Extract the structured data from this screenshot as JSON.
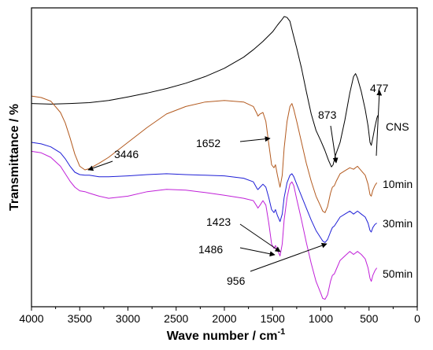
{
  "chart_data": {
    "type": "line",
    "title": "",
    "xlabel": "Wave number / cm",
    "xlabel_sup": "-1",
    "ylabel": "Transmittance / %",
    "xlim": [
      4000,
      0
    ],
    "ylim": [
      0,
      100
    ],
    "xticks": [
      "4000",
      "3500",
      "3000",
      "2500",
      "2000",
      "1500",
      "1000",
      "500",
      "0"
    ],
    "grid": false,
    "legend": "none",
    "series": [
      {
        "name": "CNS",
        "color": "#000000",
        "points": [
          [
            4000,
            68.0
          ],
          [
            3800,
            67.8
          ],
          [
            3600,
            68.0
          ],
          [
            3400,
            68.3
          ],
          [
            3200,
            69.0
          ],
          [
            3000,
            70.2
          ],
          [
            2800,
            71.5
          ],
          [
            2600,
            73.0
          ],
          [
            2400,
            74.8
          ],
          [
            2200,
            77.0
          ],
          [
            2000,
            79.8
          ],
          [
            1800,
            83.5
          ],
          [
            1700,
            86.0
          ],
          [
            1600,
            88.8
          ],
          [
            1500,
            92.0
          ],
          [
            1450,
            94.2
          ],
          [
            1400,
            96.2
          ],
          [
            1380,
            97.1
          ],
          [
            1350,
            96.8
          ],
          [
            1320,
            95.5
          ],
          [
            1290,
            91.5
          ],
          [
            1250,
            86.5
          ],
          [
            1200,
            79.8
          ],
          [
            1150,
            72.0
          ],
          [
            1100,
            64.5
          ],
          [
            1050,
            59.0
          ],
          [
            1000,
            55.5
          ],
          [
            960,
            52.5
          ],
          [
            920,
            49.0
          ],
          [
            890,
            46.8
          ],
          [
            873,
            47.5
          ],
          [
            850,
            50.5
          ],
          [
            800,
            55.0
          ],
          [
            750,
            62.5
          ],
          [
            700,
            71.5
          ],
          [
            660,
            77.0
          ],
          [
            640,
            78.0
          ],
          [
            620,
            76.5
          ],
          [
            580,
            72.0
          ],
          [
            540,
            66.0
          ],
          [
            510,
            60.5
          ],
          [
            490,
            55.0
          ],
          [
            477,
            54.0
          ],
          [
            460,
            56.5
          ],
          [
            440,
            60.0
          ],
          [
            420,
            63.0
          ],
          [
            410,
            64.0
          ]
        ]
      },
      {
        "name": "10min",
        "color": "#b35a1f",
        "points": [
          [
            4000,
            70.5
          ],
          [
            3900,
            70.0
          ],
          [
            3800,
            68.8
          ],
          [
            3700,
            65.0
          ],
          [
            3650,
            61.5
          ],
          [
            3600,
            56.5
          ],
          [
            3550,
            51.0
          ],
          [
            3500,
            47.0
          ],
          [
            3446,
            45.8
          ],
          [
            3400,
            46.2
          ],
          [
            3300,
            48.0
          ],
          [
            3200,
            50.0
          ],
          [
            3000,
            55.0
          ],
          [
            2800,
            60.0
          ],
          [
            2600,
            64.5
          ],
          [
            2400,
            67.0
          ],
          [
            2200,
            68.5
          ],
          [
            2000,
            69.0
          ],
          [
            1800,
            68.5
          ],
          [
            1700,
            67.0
          ],
          [
            1660,
            64.5
          ],
          [
            1652,
            63.8
          ],
          [
            1630,
            64.5
          ],
          [
            1600,
            65.0
          ],
          [
            1570,
            62.0
          ],
          [
            1540,
            54.5
          ],
          [
            1510,
            47.5
          ],
          [
            1486,
            46.5
          ],
          [
            1470,
            47.5
          ],
          [
            1450,
            44.0
          ],
          [
            1423,
            40.0
          ],
          [
            1400,
            44.0
          ],
          [
            1380,
            53.0
          ],
          [
            1350,
            62.0
          ],
          [
            1320,
            67.0
          ],
          [
            1300,
            68.0
          ],
          [
            1280,
            66.0
          ],
          [
            1250,
            62.0
          ],
          [
            1200,
            55.0
          ],
          [
            1150,
            48.0
          ],
          [
            1100,
            42.0
          ],
          [
            1050,
            37.0
          ],
          [
            1000,
            33.5
          ],
          [
            980,
            32.0
          ],
          [
            956,
            31.5
          ],
          [
            930,
            33.5
          ],
          [
            900,
            38.0
          ],
          [
            880,
            40.0
          ],
          [
            860,
            40.5
          ],
          [
            840,
            42.0
          ],
          [
            800,
            44.5
          ],
          [
            750,
            45.5
          ],
          [
            700,
            46.5
          ],
          [
            660,
            46.0
          ],
          [
            620,
            47.0
          ],
          [
            580,
            45.5
          ],
          [
            540,
            44.0
          ],
          [
            510,
            41.0
          ],
          [
            490,
            37.5
          ],
          [
            477,
            37.0
          ],
          [
            460,
            39.0
          ],
          [
            440,
            40.5
          ],
          [
            420,
            41.5
          ]
        ]
      },
      {
        "name": "30min",
        "color": "#1f1fd6",
        "points": [
          [
            4000,
            55.0
          ],
          [
            3900,
            54.5
          ],
          [
            3800,
            53.5
          ],
          [
            3700,
            51.5
          ],
          [
            3650,
            49.5
          ],
          [
            3600,
            47.0
          ],
          [
            3550,
            45.0
          ],
          [
            3500,
            44.2
          ],
          [
            3446,
            44.0
          ],
          [
            3400,
            44.0
          ],
          [
            3300,
            43.5
          ],
          [
            3200,
            43.5
          ],
          [
            3000,
            43.8
          ],
          [
            2800,
            44.2
          ],
          [
            2600,
            44.5
          ],
          [
            2400,
            44.2
          ],
          [
            2200,
            44.0
          ],
          [
            2000,
            43.8
          ],
          [
            1800,
            43.0
          ],
          [
            1700,
            41.8
          ],
          [
            1660,
            39.5
          ],
          [
            1652,
            39.2
          ],
          [
            1630,
            40.0
          ],
          [
            1600,
            41.0
          ],
          [
            1570,
            40.0
          ],
          [
            1540,
            36.5
          ],
          [
            1510,
            32.5
          ],
          [
            1486,
            31.5
          ],
          [
            1470,
            32.5
          ],
          [
            1450,
            30.5
          ],
          [
            1423,
            28.5
          ],
          [
            1400,
            31.0
          ],
          [
            1380,
            36.5
          ],
          [
            1350,
            41.5
          ],
          [
            1320,
            44.0
          ],
          [
            1300,
            44.5
          ],
          [
            1280,
            43.5
          ],
          [
            1250,
            41.0
          ],
          [
            1200,
            37.0
          ],
          [
            1150,
            33.0
          ],
          [
            1100,
            29.0
          ],
          [
            1050,
            25.5
          ],
          [
            1000,
            23.0
          ],
          [
            980,
            22.0
          ],
          [
            956,
            21.5
          ],
          [
            930,
            22.5
          ],
          [
            900,
            25.0
          ],
          [
            880,
            26.5
          ],
          [
            860,
            27.0
          ],
          [
            840,
            28.0
          ],
          [
            800,
            30.0
          ],
          [
            750,
            31.0
          ],
          [
            700,
            32.0
          ],
          [
            660,
            31.0
          ],
          [
            620,
            32.0
          ],
          [
            580,
            31.0
          ],
          [
            540,
            30.0
          ],
          [
            510,
            28.0
          ],
          [
            490,
            25.5
          ],
          [
            477,
            25.0
          ],
          [
            460,
            26.5
          ],
          [
            440,
            27.5
          ],
          [
            420,
            28.0
          ]
        ]
      },
      {
        "name": "50min",
        "color": "#c020d8",
        "points": [
          [
            4000,
            52.0
          ],
          [
            3900,
            51.5
          ],
          [
            3800,
            50.0
          ],
          [
            3700,
            47.0
          ],
          [
            3650,
            44.5
          ],
          [
            3600,
            42.0
          ],
          [
            3550,
            40.0
          ],
          [
            3500,
            38.8
          ],
          [
            3446,
            38.5
          ],
          [
            3400,
            38.0
          ],
          [
            3300,
            37.0
          ],
          [
            3200,
            36.3
          ],
          [
            3000,
            37.0
          ],
          [
            2800,
            38.5
          ],
          [
            2600,
            39.3
          ],
          [
            2400,
            39.0
          ],
          [
            2200,
            38.2
          ],
          [
            2000,
            37.3
          ],
          [
            1800,
            36.3
          ],
          [
            1700,
            35.5
          ],
          [
            1660,
            33.5
          ],
          [
            1652,
            33.0
          ],
          [
            1630,
            34.0
          ],
          [
            1600,
            35.5
          ],
          [
            1570,
            34.0
          ],
          [
            1540,
            28.0
          ],
          [
            1510,
            21.0
          ],
          [
            1486,
            19.5
          ],
          [
            1470,
            20.5
          ],
          [
            1450,
            19.0
          ],
          [
            1423,
            17.0
          ],
          [
            1400,
            21.0
          ],
          [
            1380,
            29.0
          ],
          [
            1350,
            36.5
          ],
          [
            1320,
            41.0
          ],
          [
            1300,
            41.8
          ],
          [
            1280,
            40.5
          ],
          [
            1250,
            36.0
          ],
          [
            1200,
            29.0
          ],
          [
            1150,
            21.5
          ],
          [
            1100,
            14.5
          ],
          [
            1050,
            8.5
          ],
          [
            1000,
            4.5
          ],
          [
            980,
            2.8
          ],
          [
            956,
            2.5
          ],
          [
            930,
            4.0
          ],
          [
            900,
            8.5
          ],
          [
            880,
            10.5
          ],
          [
            860,
            11.0
          ],
          [
            840,
            12.5
          ],
          [
            800,
            15.5
          ],
          [
            750,
            17.0
          ],
          [
            700,
            18.5
          ],
          [
            660,
            17.5
          ],
          [
            620,
            18.5
          ],
          [
            580,
            17.5
          ],
          [
            540,
            16.0
          ],
          [
            510,
            13.0
          ],
          [
            490,
            9.5
          ],
          [
            477,
            8.5
          ],
          [
            460,
            10.5
          ],
          [
            440,
            12.0
          ],
          [
            420,
            13.0
          ]
        ]
      }
    ],
    "annotations": [
      {
        "text": "3446",
        "x": 3446,
        "y": 45.8
      },
      {
        "text": "1652",
        "x": 1652,
        "y": 63.8
      },
      {
        "text": "873",
        "x": 873,
        "y": 47.5
      },
      {
        "text": "477",
        "x": 477,
        "y": 54.0
      },
      {
        "text": "1423",
        "x": 1423,
        "y": 40.0
      },
      {
        "text": "1486",
        "x": 1486,
        "y": 19.5
      },
      {
        "text": "956",
        "x": 956,
        "y": 21.5
      }
    ],
    "series_labels": [
      "CNS",
      "10min",
      "30min",
      "50min"
    ]
  }
}
